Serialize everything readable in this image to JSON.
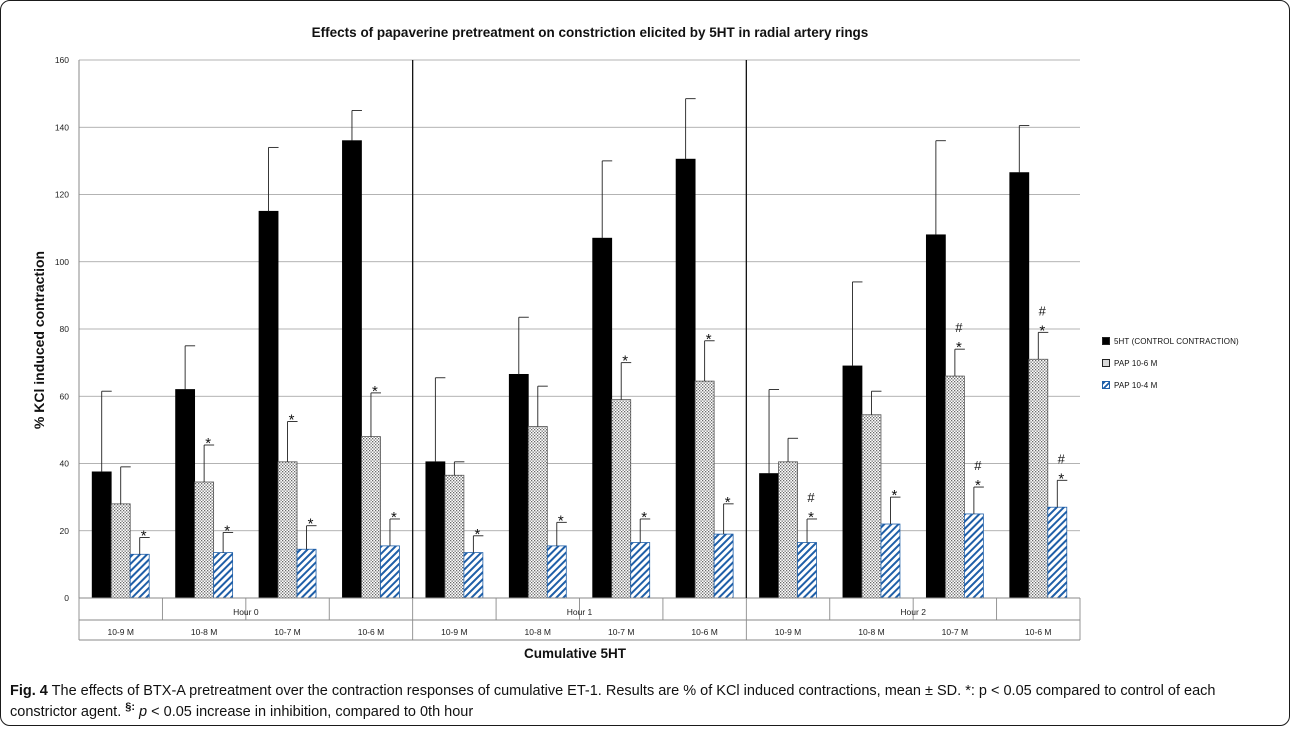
{
  "chart_data": {
    "type": "bar",
    "title": "Effects of papaverine pretreatment on constriction elicited by 5HT in radial artery rings",
    "xlabel": "Cumulative 5HT",
    "ylabel": "% KCl induced contraction",
    "ylim": [
      0,
      160
    ],
    "yticks": [
      "0",
      "20",
      "40",
      "60",
      "80",
      "100",
      "120",
      "140",
      "160"
    ],
    "grid": true,
    "legend_position": "right",
    "groups": [
      "Hour 0",
      "Hour 1",
      "Hour 2"
    ],
    "categories": [
      "10-9 M",
      "10-8 M",
      "10-7 M",
      "10-6 M",
      "10-9 M",
      "10-8 M",
      "10-7 M",
      "10-6 M",
      "10-9 M",
      "10-8 M",
      "10-7 M",
      "10-6 M"
    ],
    "series": [
      {
        "name": "5HT (CONTROL CONTRACTION)",
        "color": "#000000",
        "pattern": "solid",
        "values": [
          37.5,
          62,
          115,
          136,
          40.5,
          66.5,
          107,
          130.5,
          37,
          69,
          108,
          126.5
        ],
        "errors": [
          24,
          13,
          19,
          9,
          25,
          17,
          23,
          18,
          25,
          25,
          28,
          14
        ],
        "annotations": [
          "",
          "",
          "",
          "",
          "",
          "",
          "",
          "",
          "",
          "",
          "",
          ""
        ]
      },
      {
        "name": "PAP 10-6 M",
        "color": "#d9d9d9",
        "pattern": "dotted",
        "values": [
          28,
          34.5,
          40.5,
          48,
          36.5,
          51,
          59,
          64.5,
          40.5,
          54.5,
          66,
          71
        ],
        "errors": [
          11,
          11,
          12,
          13,
          4,
          12,
          11,
          12,
          7,
          7,
          8,
          8
        ],
        "annotations": [
          "",
          "*",
          "*",
          "*",
          "",
          "",
          "*",
          "*",
          "",
          "",
          "# *",
          "# *"
        ]
      },
      {
        "name": "PAP 10-4 M",
        "color": "#1f5fa8",
        "pattern": "hatched",
        "values": [
          13,
          13.5,
          14.5,
          15.5,
          13.5,
          15.5,
          16.5,
          19,
          16.5,
          22,
          25,
          27
        ],
        "errors": [
          5,
          6,
          7,
          8,
          5,
          7,
          7,
          9,
          7,
          8,
          8,
          8
        ],
        "annotations": [
          "*",
          "*",
          "*",
          "*",
          "*",
          "*",
          "*",
          "*",
          "# *",
          "*",
          "# *",
          "# *"
        ]
      }
    ]
  },
  "caption": {
    "label": "Fig. 4",
    "text1": " The effects of BTX-A pretreatment over the contraction responses of cumulative ET-1. Results are % of KCl induced contractions, mean ± SD. *: p < 0.05 compared to control of each constrictor agent. ",
    "symbol": "§:",
    "p": " p",
    "text2": " < 0.05 increase in inhibition, compared to 0th hour"
  }
}
